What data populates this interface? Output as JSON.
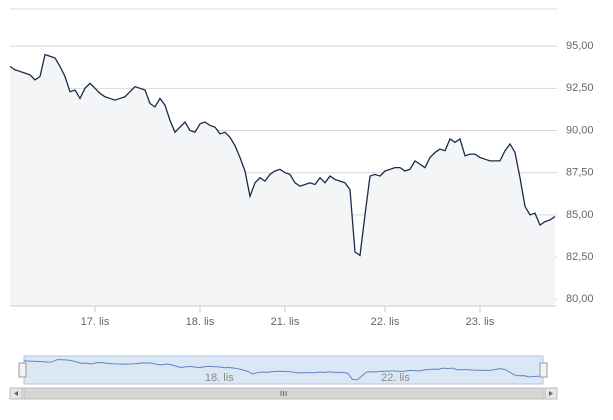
{
  "chart_data": {
    "type": "line",
    "color": "#1b2a4a",
    "grid": true,
    "navigator": true,
    "categories": [
      null,
      null,
      null,
      null,
      null,
      null,
      null,
      null,
      null,
      null,
      null,
      null,
      null,
      null,
      null,
      null,
      null,
      "17. lis",
      null,
      null,
      null,
      null,
      null,
      null,
      null,
      null,
      null,
      null,
      null,
      null,
      null,
      null,
      null,
      null,
      null,
      null,
      null,
      null,
      "18. lis",
      null,
      null,
      null,
      null,
      null,
      null,
      null,
      null,
      null,
      null,
      null,
      null,
      null,
      null,
      null,
      null,
      "21. lis",
      null,
      null,
      null,
      null,
      null,
      null,
      null,
      null,
      null,
      null,
      null,
      null,
      null,
      null,
      null,
      null,
      null,
      null,
      null,
      "22. lis",
      null,
      null,
      null,
      null,
      null,
      null,
      null,
      null,
      null,
      null,
      null,
      null,
      null,
      null,
      null,
      null,
      null,
      null,
      "23. lis",
      null,
      null,
      null,
      null,
      null,
      null,
      null,
      null,
      null,
      null,
      null,
      null,
      null,
      null,
      null
    ],
    "values": [
      93.8,
      93.6,
      93.5,
      93.4,
      93.3,
      93.0,
      93.2,
      94.5,
      94.4,
      94.3,
      93.8,
      93.2,
      92.3,
      92.4,
      91.9,
      92.5,
      92.8,
      92.5,
      92.2,
      92.0,
      91.9,
      91.8,
      91.9,
      92.0,
      92.3,
      92.6,
      92.5,
      92.4,
      91.6,
      91.4,
      91.9,
      91.5,
      90.6,
      89.9,
      90.2,
      90.5,
      90.0,
      89.9,
      90.4,
      90.5,
      90.3,
      90.2,
      89.8,
      89.9,
      89.6,
      89.1,
      88.4,
      87.6,
      86.1,
      86.9,
      87.2,
      87.0,
      87.4,
      87.6,
      87.7,
      87.5,
      87.4,
      86.9,
      86.7,
      86.8,
      86.9,
      86.8,
      87.2,
      86.9,
      87.3,
      87.1,
      87.0,
      86.9,
      86.5,
      82.8,
      82.6,
      85.0,
      87.3,
      87.4,
      87.3,
      87.6,
      87.7,
      87.8,
      87.8,
      87.6,
      87.7,
      88.2,
      88.0,
      87.8,
      88.4,
      88.7,
      88.9,
      88.8,
      89.5,
      89.3,
      89.5,
      88.5,
      88.6,
      88.6,
      88.4,
      88.3,
      88.2,
      88.2,
      88.2,
      88.8,
      89.2,
      88.7,
      87.2,
      85.5,
      85.0,
      85.1,
      84.4,
      84.6,
      84.7,
      84.9
    ],
    "ylim": [
      79.6,
      97.2
    ],
    "yticks": [
      {
        "value": 80,
        "label": "80,00"
      },
      {
        "value": 82.5,
        "label": "82,50"
      },
      {
        "value": 85,
        "label": "85,00"
      },
      {
        "value": 87.5,
        "label": "87,50"
      },
      {
        "value": 90,
        "label": "90,00"
      },
      {
        "value": 92.5,
        "label": "92,50"
      },
      {
        "value": 95,
        "label": "95,00"
      }
    ]
  }
}
